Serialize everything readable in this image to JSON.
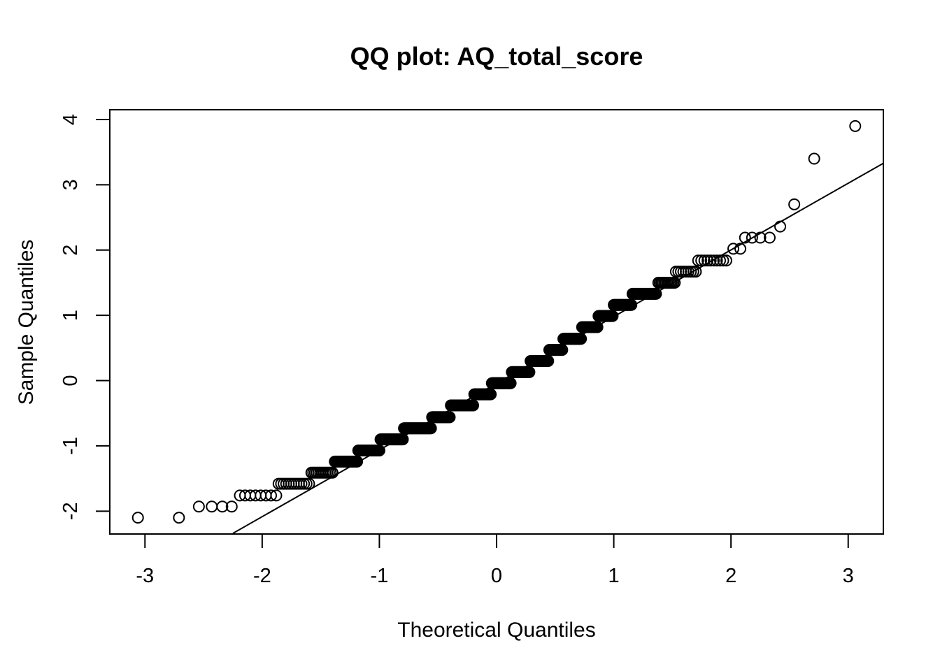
{
  "chart_data": {
    "type": "scatter",
    "title": "QQ plot: AQ_total_score",
    "xlabel": "Theoretical Quantiles",
    "ylabel": "Sample Quantiles",
    "xlim": [
      -3.3,
      3.3
    ],
    "ylim": [
      -2.35,
      4.15
    ],
    "x_ticks": [
      -3,
      -2,
      -1,
      0,
      1,
      2,
      3
    ],
    "y_ticks": [
      -2,
      -1,
      0,
      1,
      2,
      3,
      4
    ],
    "x_tick_labels": [
      "-3",
      "-2",
      "-1",
      "0",
      "1",
      "2",
      "3"
    ],
    "y_tick_labels": [
      "-2",
      "-1",
      "0",
      "1",
      "2",
      "3",
      "4"
    ],
    "grid": false,
    "marker": "open-circle",
    "color": "#000000",
    "reference_line": {
      "x": [
        -2.25,
        3.3
      ],
      "y": [
        -2.34,
        3.33
      ]
    },
    "discrete_levels": [
      {
        "y": -2.1,
        "x": [
          -3.06,
          -2.71
        ]
      },
      {
        "y": -1.93,
        "x": [
          -2.54,
          -2.43,
          -2.34,
          -2.26
        ]
      },
      {
        "y": -1.76,
        "x_from": -2.19,
        "x_to": -1.88,
        "count": 8
      },
      {
        "y": -1.58,
        "x_from": -1.86,
        "x_to": -1.6,
        "count": 13
      },
      {
        "y": -1.41,
        "x_from": -1.58,
        "x_to": -1.4,
        "count": 13
      },
      {
        "y": -1.24,
        "x_from": -1.38,
        "x_to": -1.19,
        "count": 20
      },
      {
        "y": -1.07,
        "x_from": -1.18,
        "x_to": -1.0,
        "count": 25
      },
      {
        "y": -0.9,
        "x_from": -0.99,
        "x_to": -0.8,
        "count": 30
      },
      {
        "y": -0.73,
        "x_from": -0.79,
        "x_to": -0.56,
        "count": 35
      },
      {
        "y": -0.56,
        "x_from": -0.55,
        "x_to": -0.4,
        "count": 35
      },
      {
        "y": -0.38,
        "x_from": -0.39,
        "x_to": -0.2,
        "count": 35
      },
      {
        "y": -0.21,
        "x_from": -0.19,
        "x_to": -0.05,
        "count": 35
      },
      {
        "y": -0.04,
        "x_from": -0.04,
        "x_to": 0.12,
        "count": 35
      },
      {
        "y": 0.13,
        "x_from": 0.13,
        "x_to": 0.28,
        "count": 35
      },
      {
        "y": 0.3,
        "x_from": 0.29,
        "x_to": 0.44,
        "count": 35
      },
      {
        "y": 0.47,
        "x_from": 0.45,
        "x_to": 0.56,
        "count": 30
      },
      {
        "y": 0.64,
        "x_from": 0.57,
        "x_to": 0.72,
        "count": 30
      },
      {
        "y": 0.82,
        "x_from": 0.73,
        "x_to": 0.86,
        "count": 25
      },
      {
        "y": 0.99,
        "x_from": 0.87,
        "x_to": 0.99,
        "count": 22
      },
      {
        "y": 1.16,
        "x_from": 1.0,
        "x_to": 1.15,
        "count": 20
      },
      {
        "y": 1.33,
        "x_from": 1.16,
        "x_to": 1.36,
        "count": 20
      },
      {
        "y": 1.5,
        "x_from": 1.38,
        "x_to": 1.52,
        "count": 12
      },
      {
        "y": 1.67,
        "x_from": 1.53,
        "x_to": 1.7,
        "count": 9
      },
      {
        "y": 1.84,
        "x_from": 1.72,
        "x_to": 1.96,
        "count": 10
      },
      {
        "y": 2.02,
        "x": [
          2.02,
          2.08
        ]
      },
      {
        "y": 2.19,
        "x": [
          2.12,
          2.18,
          2.25,
          2.33
        ]
      },
      {
        "y": 2.36,
        "x": [
          2.42
        ]
      },
      {
        "y": 2.7,
        "x": [
          2.54
        ]
      },
      {
        "y": 3.4,
        "x": [
          2.71
        ]
      },
      {
        "y": 3.9,
        "x": [
          3.06
        ]
      }
    ]
  }
}
